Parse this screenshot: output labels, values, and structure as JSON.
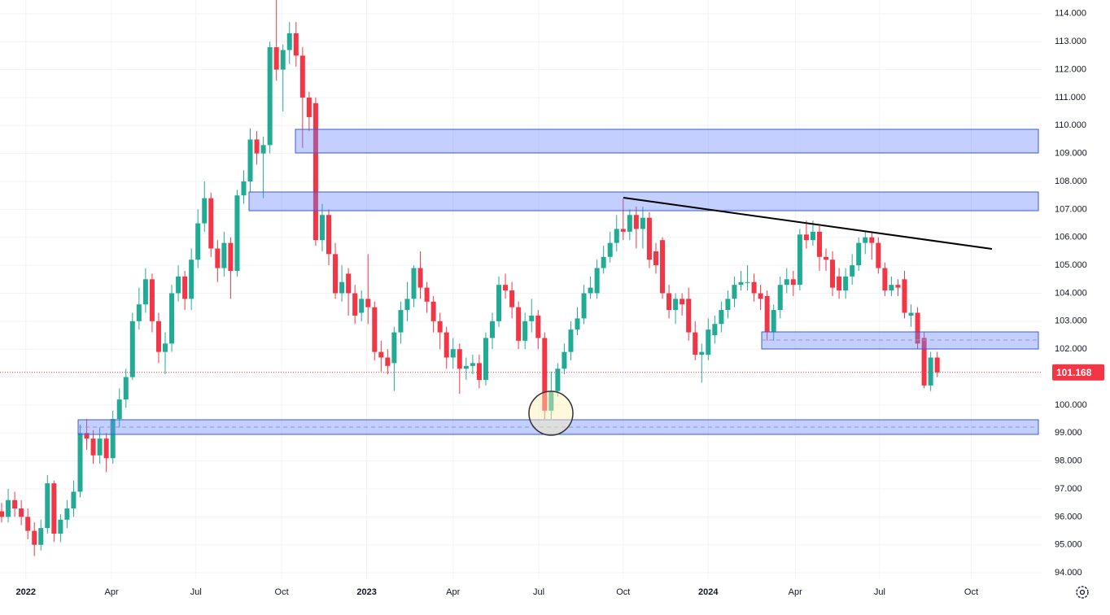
{
  "chart_data": {
    "type": "candlestick",
    "up_color": "#22ab94",
    "down_color": "#f23645",
    "grid": true,
    "xlim": [
      -0.25,
      158.96
    ],
    "ylim": [
      93.77,
      114.49
    ],
    "xticks": [
      {
        "value": 3.7,
        "label": "2022"
      },
      {
        "value": 16.8,
        "label": "Apr"
      },
      {
        "value": 29.7,
        "label": "Jul"
      },
      {
        "value": 42.8,
        "label": "Oct"
      },
      {
        "value": 55.8,
        "label": "2023"
      },
      {
        "value": 69.0,
        "label": "Apr"
      },
      {
        "value": 82.1,
        "label": "Jul"
      },
      {
        "value": 95.0,
        "label": "Oct"
      },
      {
        "value": 108.0,
        "label": "2024"
      },
      {
        "value": 121.3,
        "label": "Apr"
      },
      {
        "value": 134.2,
        "label": "Jul"
      },
      {
        "value": 148.2,
        "label": "Oct"
      }
    ],
    "yticks": [
      {
        "value": 94,
        "label": "94.000"
      },
      {
        "value": 95,
        "label": "95.000"
      },
      {
        "value": 96,
        "label": "96.000"
      },
      {
        "value": 97,
        "label": "97.000"
      },
      {
        "value": 98,
        "label": "98.000"
      },
      {
        "value": 99,
        "label": "99.000"
      },
      {
        "value": 100,
        "label": "100.000"
      },
      {
        "value": 101,
        "label": "101.000"
      },
      {
        "value": 102,
        "label": "102.000"
      },
      {
        "value": 103,
        "label": "103.000"
      },
      {
        "value": 104,
        "label": "104.000"
      },
      {
        "value": 105,
        "label": "105.000"
      },
      {
        "value": 106,
        "label": "106.000"
      },
      {
        "value": 107,
        "label": "107.000"
      },
      {
        "value": 108,
        "label": "108.000"
      },
      {
        "value": 109,
        "label": "109.000"
      },
      {
        "value": 110,
        "label": "110.000"
      },
      {
        "value": 111,
        "label": "111.000"
      },
      {
        "value": 112,
        "label": "112.000"
      },
      {
        "value": 113,
        "label": "113.000"
      },
      {
        "value": 114,
        "label": "114.000"
      }
    ],
    "open": [
      96.2,
      96.0,
      96.6,
      96.3,
      96.0,
      95.5,
      95.0,
      95.6,
      97.2,
      95.4,
      95.9,
      96.3,
      96.9,
      99.0,
      98.8,
      98.2,
      98.8,
      98.1,
      99.5,
      100.2,
      101.0,
      103.0,
      103.6,
      104.5,
      103.0,
      101.9,
      102.2,
      104.0,
      104.6,
      103.8,
      105.2,
      106.5,
      107.4,
      105.6,
      104.9,
      105.8,
      104.8,
      107.5,
      108.0,
      109.5,
      109.0,
      109.3,
      112.8,
      112.0,
      112.7,
      113.3,
      112.5,
      111.0,
      110.8,
      105.9,
      106.8,
      105.4,
      104.0,
      104.7,
      104.0,
      103.3,
      103.8,
      103.5,
      101.9,
      101.7,
      101.5,
      102.6,
      103.4,
      103.8,
      104.9,
      104.2,
      103.7,
      103.0,
      102.6,
      101.7,
      102.0,
      101.3,
      101.4,
      101.5,
      100.9,
      102.4,
      103.0,
      104.3,
      104.1,
      103.5,
      102.3,
      103.0,
      103.2,
      102.4,
      99.8,
      100.5,
      101.3,
      101.9,
      102.7,
      103.1,
      104.0,
      104.0,
      104.9,
      105.3,
      105.8,
      106.3,
      106.2,
      106.8,
      106.3,
      106.7,
      105.5,
      105.9,
      104.0,
      103.4,
      103.8,
      103.8,
      102.6,
      101.8,
      101.8,
      102.5,
      102.9,
      103.4,
      103.8,
      104.3,
      104.4,
      104.4,
      104.0,
      103.9,
      102.6,
      103.4,
      104.3,
      104.5,
      104.3,
      106.1,
      105.9,
      106.2,
      105.3,
      105.2,
      104.6,
      104.1,
      104.6,
      105.0,
      105.8,
      106.0,
      105.8,
      104.9,
      104.1,
      104.3,
      104.5,
      103.2,
      103.3,
      102.4,
      100.7,
      101.7
    ],
    "high": [
      96.5,
      97.0,
      96.9,
      96.6,
      96.3,
      95.8,
      95.9,
      97.5,
      97.3,
      96.1,
      96.6,
      97.3,
      99.3,
      99.5,
      99.1,
      99.2,
      99.0,
      99.8,
      100.6,
      101.3,
      103.3,
      104.2,
      104.9,
      104.7,
      103.3,
      102.6,
      104.3,
      105.0,
      104.8,
      105.6,
      107.0,
      108.0,
      107.6,
      105.9,
      106.2,
      106.0,
      107.7,
      108.4,
      109.9,
      109.8,
      109.6,
      113.0,
      114.5,
      112.9,
      113.7,
      113.7,
      112.8,
      111.2,
      111.0,
      107.2,
      107.0,
      105.8,
      105.0,
      104.9,
      104.3,
      104.1,
      105.4,
      103.7,
      102.3,
      102.0,
      102.8,
      103.7,
      104.4,
      105.0,
      105.5,
      104.4,
      103.9,
      103.3,
      102.8,
      102.4,
      102.2,
      101.7,
      101.8,
      101.8,
      102.6,
      103.3,
      104.6,
      104.7,
      104.4,
      103.7,
      103.3,
      103.8,
      103.4,
      102.6,
      101.2,
      101.5,
      102.2,
      103.0,
      103.5,
      104.3,
      104.6,
      105.2,
      105.7,
      106.2,
      106.8,
      107.4,
      107.0,
      107.1,
      107.1,
      106.9,
      105.8,
      106.0,
      104.3,
      104.0,
      104.0,
      104.2,
      103.0,
      102.2,
      103.1,
      103.2,
      103.7,
      104.1,
      104.6,
      104.8,
      105.0,
      104.7,
      104.3,
      104.1,
      103.6,
      104.6,
      104.9,
      104.8,
      106.3,
      106.6,
      106.6,
      106.4,
      105.6,
      105.5,
      104.9,
      104.9,
      105.4,
      106.0,
      106.2,
      106.2,
      106.0,
      105.1,
      104.6,
      104.5,
      104.8,
      103.6,
      103.5,
      102.6,
      101.9,
      101.9
    ],
    "low": [
      95.8,
      95.8,
      96.0,
      95.7,
      95.2,
      94.6,
      94.8,
      95.4,
      95.1,
      95.1,
      95.6,
      96.0,
      96.7,
      98.4,
      97.9,
      97.9,
      97.6,
      97.9,
      99.2,
      99.9,
      100.9,
      102.7,
      103.3,
      102.6,
      101.5,
      101.1,
      101.9,
      103.7,
      103.4,
      103.4,
      104.9,
      106.2,
      105.3,
      104.4,
      104.6,
      103.8,
      104.6,
      107.2,
      107.6,
      108.6,
      107.4,
      109.0,
      111.6,
      110.5,
      112.2,
      112.1,
      109.2,
      109.8,
      105.7,
      105.5,
      105.0,
      103.8,
      103.7,
      103.2,
      102.9,
      103.0,
      102.9,
      101.6,
      101.2,
      101.1,
      100.5,
      102.2,
      103.0,
      103.5,
      103.8,
      103.3,
      102.6,
      102.0,
      101.3,
      101.3,
      100.4,
      100.9,
      101.1,
      100.6,
      100.7,
      102.0,
      102.8,
      103.8,
      103.1,
      102.0,
      102.0,
      102.6,
      102.0,
      99.5,
      99.5,
      100.3,
      101.1,
      101.6,
      102.5,
      102.9,
      103.8,
      103.8,
      104.7,
      105.1,
      105.5,
      105.9,
      105.9,
      105.6,
      105.6,
      104.9,
      104.7,
      103.8,
      103.1,
      102.9,
      103.2,
      102.3,
      101.6,
      100.8,
      101.6,
      102.2,
      102.6,
      103.1,
      103.5,
      104.1,
      104.1,
      103.7,
      103.4,
      102.3,
      102.3,
      103.1,
      104.0,
      103.9,
      104.1,
      105.6,
      105.7,
      104.8,
      104.8,
      103.9,
      103.8,
      103.8,
      104.3,
      104.8,
      105.4,
      105.2,
      104.7,
      103.9,
      103.9,
      103.9,
      103.1,
      102.8,
      102.0,
      100.6,
      100.5,
      101.0
    ],
    "close": [
      96.0,
      96.6,
      96.3,
      96.0,
      95.5,
      95.0,
      95.6,
      97.2,
      95.4,
      95.9,
      96.3,
      96.9,
      99.0,
      98.8,
      98.2,
      98.8,
      98.1,
      99.5,
      100.2,
      101.0,
      103.0,
      103.6,
      104.5,
      103.0,
      101.9,
      102.2,
      104.0,
      104.6,
      103.8,
      105.2,
      106.5,
      107.4,
      105.6,
      104.9,
      105.8,
      104.8,
      107.5,
      108.0,
      109.5,
      109.0,
      109.3,
      112.8,
      112.0,
      112.7,
      113.3,
      112.5,
      111.0,
      110.3,
      105.9,
      106.8,
      105.4,
      104.0,
      104.4,
      104.0,
      103.2,
      103.8,
      103.5,
      101.9,
      101.7,
      101.4,
      102.6,
      103.4,
      103.8,
      104.9,
      104.2,
      103.7,
      103.0,
      102.6,
      101.7,
      102.0,
      101.3,
      101.4,
      101.5,
      100.9,
      102.4,
      103.0,
      104.3,
      104.1,
      103.5,
      102.3,
      103.0,
      103.2,
      102.4,
      99.8,
      100.5,
      101.3,
      101.9,
      102.7,
      103.1,
      104.0,
      104.2,
      104.9,
      105.3,
      105.8,
      106.3,
      106.2,
      106.8,
      106.3,
      106.7,
      105.2,
      105.0,
      104.0,
      103.4,
      103.8,
      103.6,
      102.6,
      101.8,
      101.9,
      102.7,
      102.9,
      103.4,
      103.8,
      104.3,
      104.4,
      104.4,
      104.0,
      103.8,
      102.6,
      103.4,
      104.3,
      104.5,
      104.3,
      106.1,
      105.9,
      106.2,
      105.3,
      105.2,
      104.2,
      104.1,
      104.6,
      105.0,
      105.8,
      106.0,
      105.8,
      104.9,
      104.1,
      104.3,
      104.2,
      103.3,
      103.3,
      102.2,
      100.7,
      101.7,
      101.168
    ]
  }
}
